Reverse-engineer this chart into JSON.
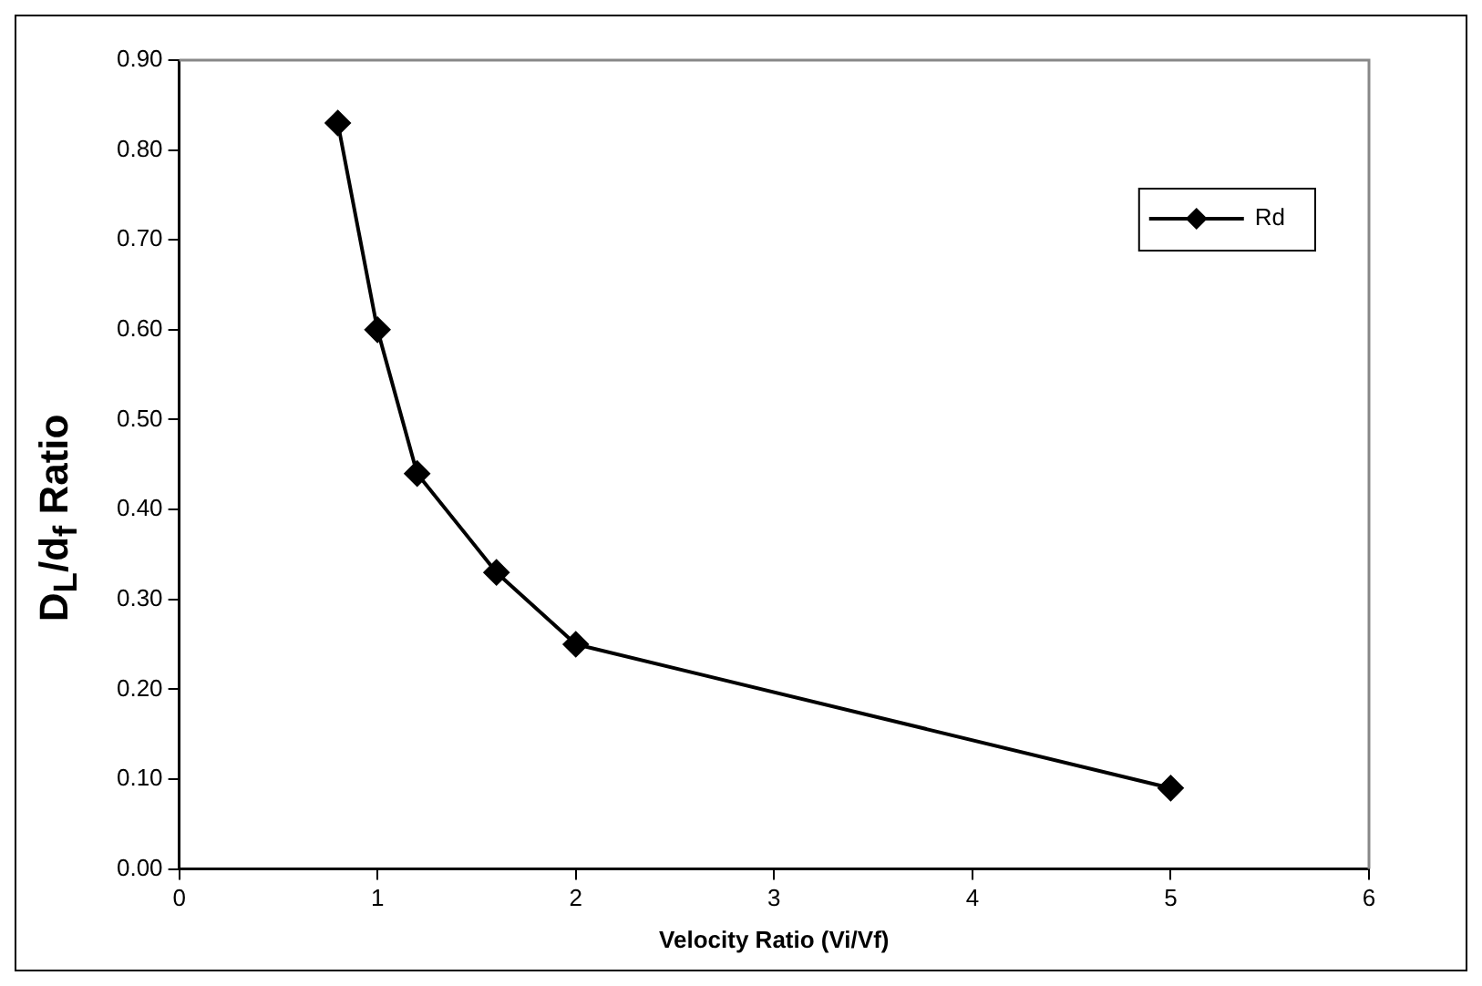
{
  "chart_data": {
    "type": "line",
    "xlabel": "Velocity Ratio (Vi/Vf)",
    "ylabel": "D$_{L}$/d$_{f}$ Ratio",
    "x": [
      0.8,
      1,
      1.2,
      1.6,
      2,
      5
    ],
    "series": [
      {
        "name": "Rd",
        "color": "#000000",
        "values": [
          0.83,
          0.6,
          0.44,
          0.33,
          0.25,
          0.09
        ]
      }
    ],
    "xlim": [
      0,
      6
    ],
    "xticks": [
      0,
      1,
      2,
      3,
      4,
      5,
      6
    ],
    "ylim": [
      0,
      0.9
    ],
    "yticks": [
      {
        "value": 0,
        "label": "0.00"
      },
      {
        "value": 0.1,
        "label": "0.10"
      },
      {
        "value": 0.2,
        "label": "0.20"
      },
      {
        "value": 0.3,
        "label": "0.30"
      },
      {
        "value": 0.4,
        "label": "0.40"
      },
      {
        "value": 0.5,
        "label": "0.50"
      },
      {
        "value": 0.6,
        "label": "0.60"
      },
      {
        "value": 0.7,
        "label": "0.70"
      },
      {
        "value": 0.8,
        "label": "0.80"
      },
      {
        "value": 0.9,
        "label": "0.90"
      }
    ],
    "grid": false,
    "legend": "top right",
    "marker": "diamond",
    "line_style": "solid"
  }
}
